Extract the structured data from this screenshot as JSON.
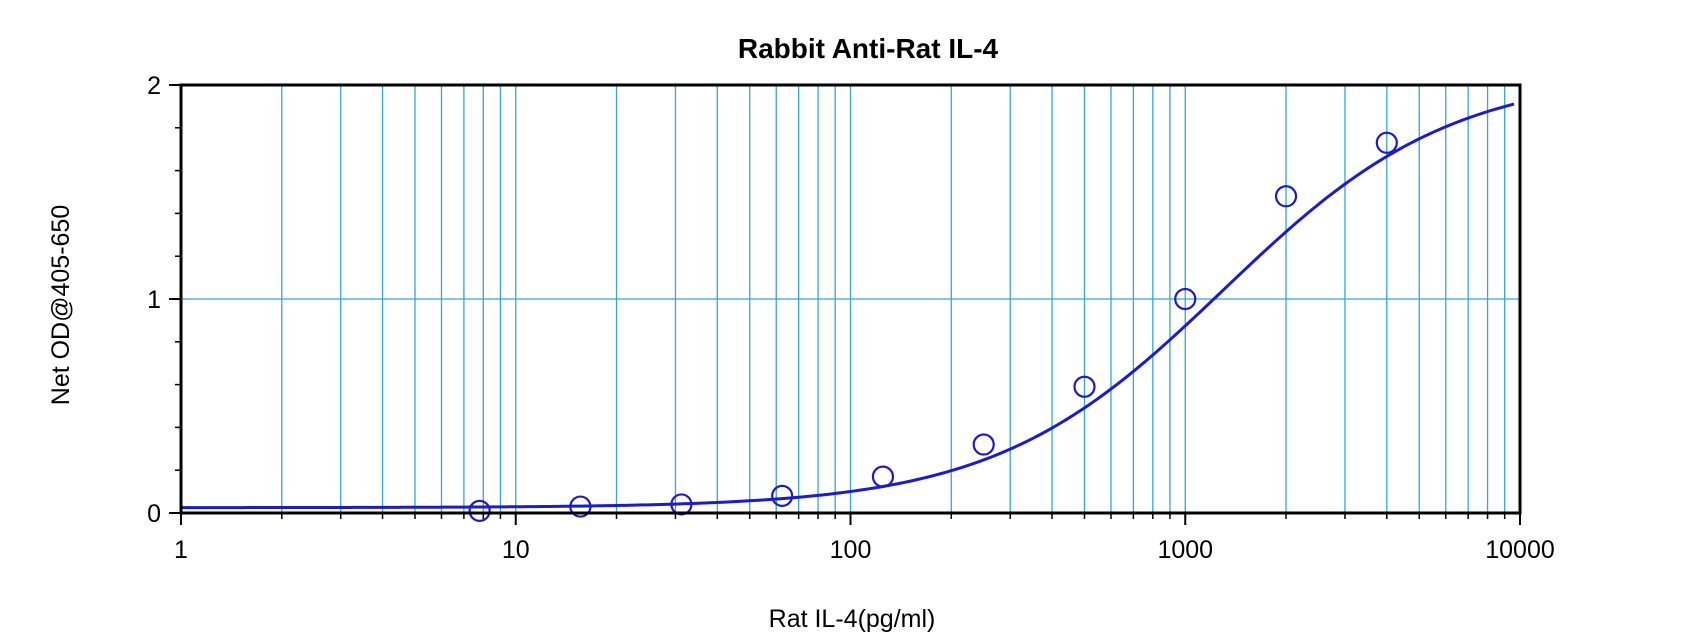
{
  "chart_data": {
    "type": "scatter",
    "title": "Rabbit Anti-Rat IL-4",
    "xlabel": "Rat IL-4(pg/ml)",
    "ylabel": "Net OD@405-650",
    "x_scale": "log",
    "xlim": [
      1,
      10000
    ],
    "ylim": [
      0,
      2
    ],
    "x_tick_labels": [
      "1",
      "10",
      "100",
      "1000",
      "10000"
    ],
    "y_tick_labels": [
      "0",
      "1",
      "2"
    ],
    "grid": true,
    "legend": false,
    "series": [
      {
        "type": "scatter",
        "points": [
          {
            "x": 7.8,
            "y": 0.01
          },
          {
            "x": 15.6,
            "y": 0.03
          },
          {
            "x": 31.25,
            "y": 0.04
          },
          {
            "x": 62.5,
            "y": 0.08
          },
          {
            "x": 125,
            "y": 0.17
          },
          {
            "x": 250,
            "y": 0.32
          },
          {
            "x": 500,
            "y": 0.59
          },
          {
            "x": 1000,
            "y": 1.0
          },
          {
            "x": 2000,
            "y": 1.48
          },
          {
            "x": 4000,
            "y": 1.73
          }
        ]
      },
      {
        "type": "line",
        "fit": "4-parameter logistic",
        "params": {
          "bottom": 0.025,
          "top": 2.06,
          "ec50": 1300,
          "hill": 1.27
        },
        "x_range": [
          1,
          9600
        ]
      }
    ],
    "colors": {
      "grid": "#35a6d6",
      "series": "#1a1ad6",
      "axis": "#000000"
    }
  }
}
